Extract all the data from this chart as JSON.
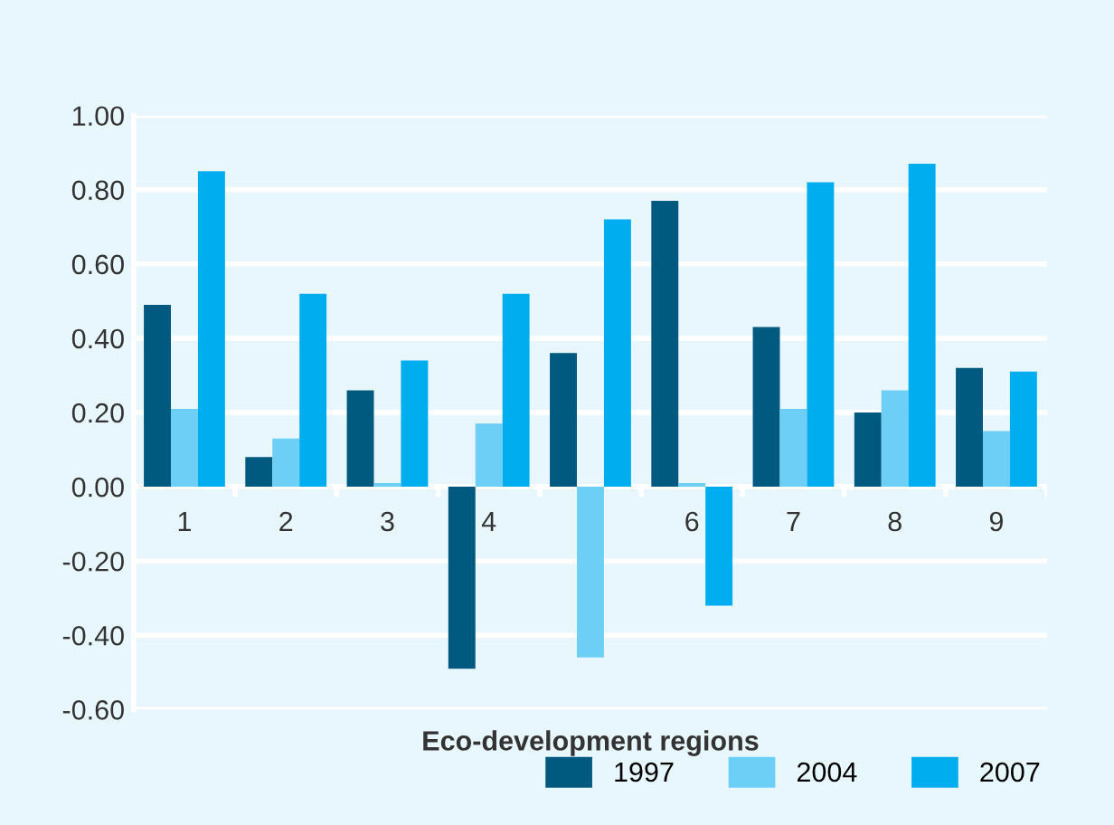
{
  "chart_data": {
    "type": "bar",
    "xlabel": "Eco-development regions",
    "categories": [
      "1",
      "2",
      "3",
      "4",
      null,
      "6",
      "7",
      "8",
      "9"
    ],
    "series": [
      {
        "name": "1997",
        "color": "#005a7f",
        "values": [
          0.49,
          0.08,
          0.26,
          -0.49,
          0.36,
          0.77,
          0.43,
          0.2,
          0.32
        ]
      },
      {
        "name": "2004",
        "color": "#6ecff6",
        "values": [
          0.21,
          0.13,
          0.01,
          0.17,
          -0.46,
          0.01,
          0.21,
          0.26,
          0.15
        ]
      },
      {
        "name": "2007",
        "color": "#00aeef",
        "values": [
          0.85,
          0.52,
          0.34,
          0.52,
          0.72,
          -0.32,
          0.82,
          0.87,
          0.31
        ]
      }
    ],
    "ylim": [
      -0.6,
      1.0
    ],
    "yticks": [
      {
        "value": -0.6,
        "label": "-0.60"
      },
      {
        "value": -0.4,
        "label": "-0.40"
      },
      {
        "value": -0.2,
        "label": "-0.20"
      },
      {
        "value": 0,
        "label": "0.00"
      },
      {
        "value": 0.2,
        "label": "0.20"
      },
      {
        "value": 0.4,
        "label": "0.40"
      },
      {
        "value": 0.6,
        "label": "0.60"
      },
      {
        "value": 0.8,
        "label": "0.80"
      },
      {
        "value": 1.0,
        "label": "1.00"
      }
    ],
    "grid": "y",
    "legend": "bottom right"
  }
}
